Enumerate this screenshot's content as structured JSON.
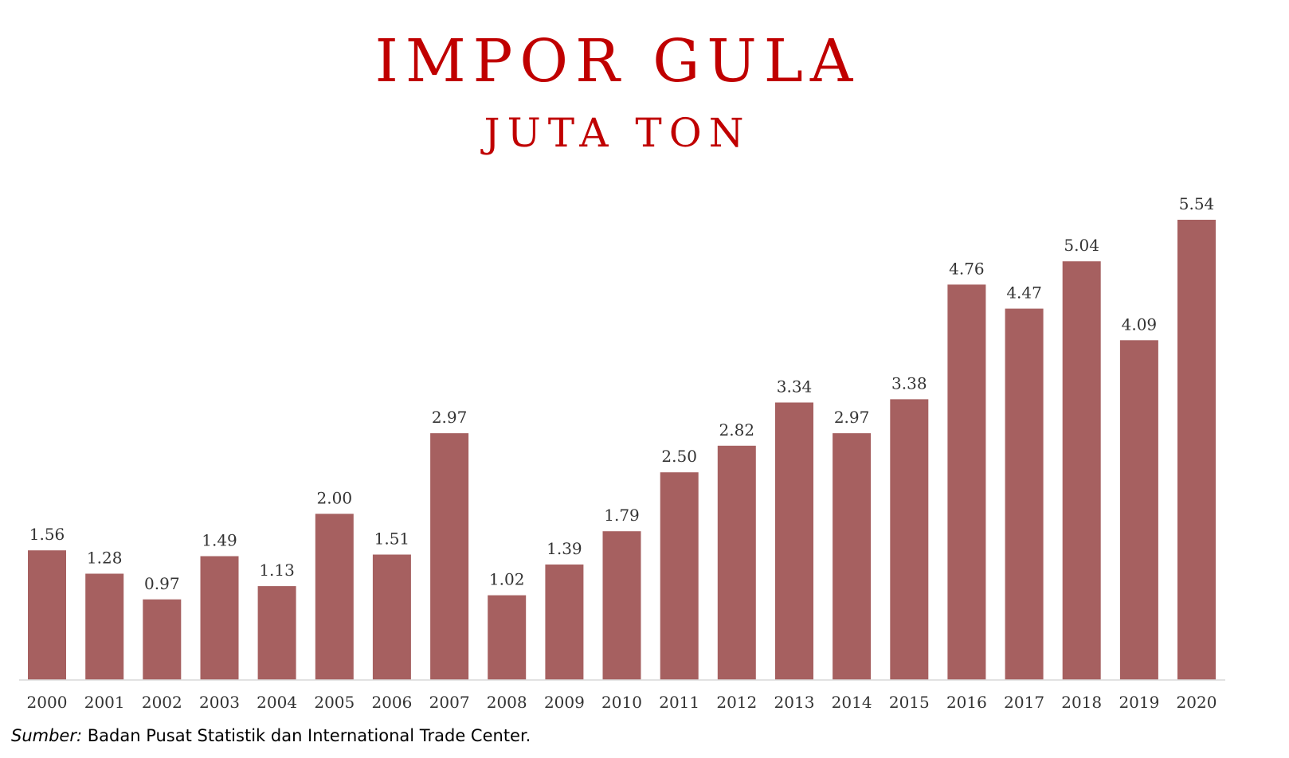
{
  "chart_data": {
    "type": "bar",
    "title": "IMPOR GULA",
    "subtitle": "JUTA TON",
    "categories": [
      "2000",
      "2001",
      "2002",
      "2003",
      "2004",
      "2005",
      "2006",
      "2007",
      "2008",
      "2009",
      "2010",
      "2011",
      "2012",
      "2013",
      "2014",
      "2015",
      "2016",
      "2017",
      "2018",
      "2019",
      "2020"
    ],
    "values": [
      1.56,
      1.28,
      0.97,
      1.49,
      1.13,
      2.0,
      1.51,
      2.97,
      1.02,
      1.39,
      1.79,
      2.5,
      2.82,
      3.34,
      2.97,
      3.38,
      4.76,
      4.47,
      5.04,
      4.09,
      5.54
    ],
    "value_labels": [
      "1.56",
      "1.28",
      "0.97",
      "1.49",
      "1.13",
      "2.00",
      "1.51",
      "2.97",
      "1.02",
      "1.39",
      "1.79",
      "2.50",
      "2.82",
      "3.34",
      "2.97",
      "3.38",
      "4.76",
      "4.47",
      "5.04",
      "4.09",
      "5.54"
    ],
    "xlabel": "",
    "ylabel": "",
    "ylim": [
      0,
      5.54
    ],
    "grid": false,
    "bar_color": "#a66060",
    "title_color": "#c00000"
  },
  "source": {
    "label": "Sumber:",
    "text": " Badan Pusat Statistik dan International Trade Center."
  }
}
